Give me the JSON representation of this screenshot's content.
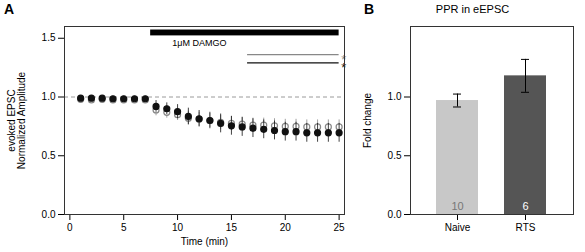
{
  "chart_data": [
    {
      "type": "scatter",
      "title": "A",
      "xlabel": "Time (min)",
      "ylabel": "evoked EPSC\nNormalized Amplitude",
      "xlim": [
        -0.5,
        25.5
      ],
      "ylim": [
        0,
        1.6
      ],
      "xticks": [
        0,
        5,
        10,
        15,
        20,
        25
      ],
      "yticks": [
        {
          "value": 0,
          "label": "0.0"
        },
        0.5,
        {
          "value": 1,
          "label": "1.0"
        },
        1.5
      ],
      "grid": false,
      "x": [
        1,
        2,
        3,
        4,
        5,
        6,
        7,
        8,
        9,
        10,
        11,
        12,
        13,
        14,
        15,
        16,
        17,
        18,
        19,
        20,
        21,
        22,
        23,
        24,
        25
      ],
      "series": [
        {
          "color": "#888888",
          "marker": "open",
          "values": [
            0.98,
            0.975,
            0.98,
            0.975,
            0.975,
            0.975,
            0.975,
            0.89,
            0.87,
            0.85,
            0.82,
            0.81,
            0.8,
            0.785,
            0.775,
            0.77,
            0.76,
            0.76,
            0.755,
            0.75,
            0.75,
            0.745,
            0.745,
            0.745,
            0.745
          ],
          "errors": [
            0.02,
            0.02,
            0.02,
            0.02,
            0.02,
            0.02,
            0.02,
            0.05,
            0.05,
            0.05,
            0.06,
            0.06,
            0.06,
            0.06,
            0.06,
            0.06,
            0.06,
            0.06,
            0.06,
            0.06,
            0.06,
            0.06,
            0.06,
            0.06,
            0.06
          ]
        },
        {
          "color": "#111111",
          "marker": "filled",
          "values": [
            0.99,
            0.99,
            0.99,
            0.985,
            0.985,
            0.985,
            0.985,
            0.92,
            0.9,
            0.875,
            0.835,
            0.815,
            0.8,
            0.775,
            0.755,
            0.745,
            0.735,
            0.725,
            0.715,
            0.705,
            0.705,
            0.695,
            0.695,
            0.695,
            0.695
          ],
          "errors": [
            0.02,
            0.02,
            0.02,
            0.02,
            0.02,
            0.02,
            0.02,
            0.05,
            0.05,
            0.06,
            0.07,
            0.07,
            0.07,
            0.08,
            0.08,
            0.08,
            0.08,
            0.08,
            0.08,
            0.08,
            0.08,
            0.08,
            0.08,
            0.08,
            0.08
          ]
        }
      ],
      "reference_lines": [
        {
          "y": 1.0,
          "color": "gray",
          "line_style": "dashed"
        }
      ],
      "spans": [
        {
          "x1": 7.5,
          "x2": 25,
          "y1": 1.52,
          "y2": 1.57,
          "color": "black"
        }
      ],
      "segments": [
        {
          "x1": 16.5,
          "x2": 25,
          "y": 1.36,
          "color": "#888888"
        },
        {
          "x1": 16.5,
          "x2": 25,
          "y": 1.29,
          "color": "#111111"
        }
      ],
      "annotations": [
        {
          "text": "1μM DAMGO",
          "x": 9.5,
          "y": 1.5
        },
        {
          "text": "*",
          "x": 25.2,
          "y": 1.34,
          "color": "#888888"
        },
        {
          "text": "*",
          "x": 25.2,
          "y": 1.27,
          "color": "#111111"
        }
      ]
    },
    {
      "type": "bar",
      "title": "B",
      "subtitle": "PPR in eEPSC",
      "ylabel": "Fold change",
      "categories": [
        "Naive",
        "RTS"
      ],
      "values": [
        0.97,
        1.18
      ],
      "errors": [
        0.055,
        0.14
      ],
      "colors": [
        "#c8c8c8",
        "#555555"
      ],
      "n": [
        10,
        6
      ],
      "ylim": [
        0,
        1.6
      ],
      "yticks": [
        {
          "value": 0,
          "label": "0.0"
        },
        0.5,
        {
          "value": 1,
          "label": "1.0"
        }
      ],
      "grid": false
    }
  ]
}
